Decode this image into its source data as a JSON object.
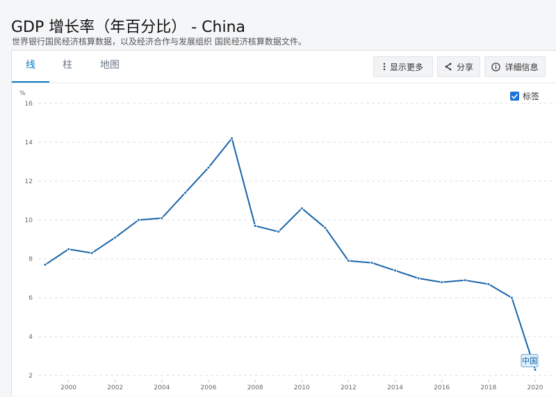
{
  "page": {
    "title": "GDP 增长率（年百分比） - China",
    "subtitle": "世界银行国民经济核算数据，以及经济合作与发展组织 国民经济核算数据文件。"
  },
  "tabs": [
    {
      "label": "线",
      "active": true
    },
    {
      "label": "柱",
      "active": false
    },
    {
      "label": "地图",
      "active": false
    }
  ],
  "toolbar": {
    "more_label": "显示更多",
    "share_label": "分享",
    "details_label": "详细信息"
  },
  "legend": {
    "checkbox_label": "标签",
    "checked": true
  },
  "colors": {
    "line": "#1763a8",
    "accent": "#0a7bc2"
  },
  "chart_data": {
    "type": "line",
    "ylabel": "%",
    "ylim": [
      2,
      16
    ],
    "yticks": [
      2,
      4,
      6,
      8,
      10,
      12,
      14,
      16
    ],
    "xlim": [
      1999,
      2020
    ],
    "xticks": [
      2000,
      2002,
      2004,
      2006,
      2008,
      2010,
      2012,
      2014,
      2016,
      2018,
      2020
    ],
    "grid": true,
    "series": [
      {
        "name": "中国",
        "x": [
          1999,
          2000,
          2001,
          2002,
          2003,
          2004,
          2005,
          2006,
          2007,
          2008,
          2009,
          2010,
          2011,
          2012,
          2013,
          2014,
          2015,
          2016,
          2017,
          2018,
          2019,
          2020
        ],
        "values": [
          7.7,
          8.5,
          8.3,
          9.1,
          10.0,
          10.1,
          11.4,
          12.7,
          14.2,
          9.7,
          9.4,
          10.6,
          9.6,
          7.9,
          7.8,
          7.4,
          7.0,
          6.8,
          6.9,
          6.7,
          6.0,
          2.3
        ]
      }
    ]
  }
}
